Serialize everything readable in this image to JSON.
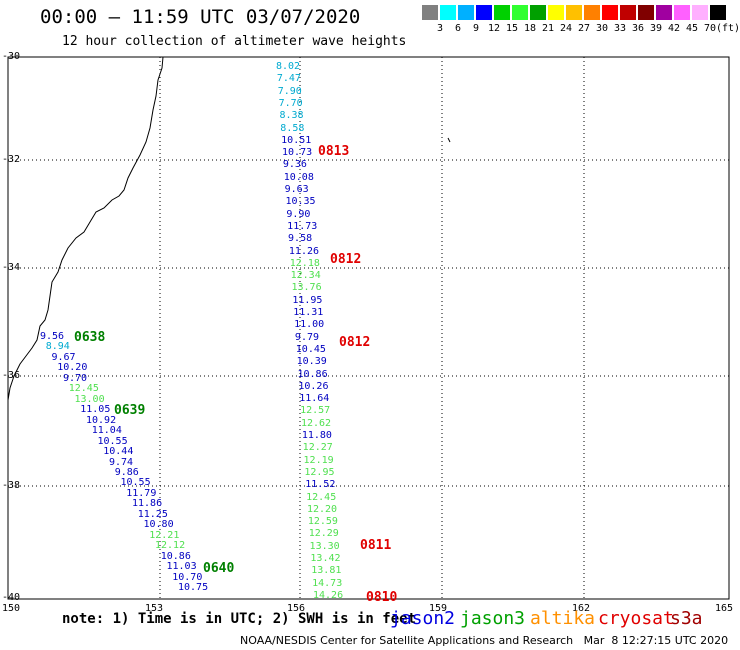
{
  "title": "00:00 – 11:59 UTC 03/07/2020",
  "subtitle": "12 hour collection of altimeter wave heights",
  "scale": {
    "colors": [
      "#808080",
      "#00ffff",
      "#00b0ff",
      "#0000ff",
      "#00d000",
      "#30ff30",
      "#00a000",
      "#ffff00",
      "#ffc000",
      "#ff8000",
      "#ff0000",
      "#c00000",
      "#800000",
      "#a000a0",
      "#ff60ff",
      "#ffb0ff",
      "#000000"
    ],
    "labels": [
      "3",
      "6",
      "9",
      "12",
      "15",
      "18",
      "21",
      "24",
      "27",
      "30",
      "33",
      "36",
      "39",
      "42",
      "45",
      "70",
      "(ft)"
    ]
  },
  "lat_labels": [
    "-30",
    "-32",
    "-34",
    "-36",
    "-38",
    "-40"
  ],
  "lon_labels": [
    "150",
    "153",
    "156",
    "159",
    "162",
    "165"
  ],
  "tracks": [
    {
      "heights": [
        "8.02",
        "7.47",
        "7.90",
        "7.70",
        "8.38",
        "8.58",
        "10.51",
        "10.73",
        "9.36",
        "10.08",
        "9.63",
        "10.35",
        "9.90",
        "11.73",
        "9.58",
        "11.26",
        "12.18",
        "12.34",
        "13.76",
        "11.95",
        "11.31",
        "11.00",
        "9.79",
        "10.45",
        "10.39",
        "10.86",
        "10.26",
        "11.64",
        "12.57",
        "12.62",
        "11.80",
        "12.27",
        "12.19",
        "12.95",
        "11.52",
        "12.45",
        "12.20",
        "12.59",
        "12.29",
        "13.30",
        "13.42",
        "13.81",
        "14.73",
        "14.26"
      ],
      "colors": [
        "#00aad0",
        "#00aad0",
        "#00aad0",
        "#00aad0",
        "#00aad0",
        "#00aad0",
        "#0000c0",
        "#0000c0",
        "#0000c0",
        "#0000c0",
        "#0000c0",
        "#0000c0",
        "#0000c0",
        "#0000c0",
        "#0000c0",
        "#0000c0",
        "#50e050",
        "#50e050",
        "#50e050",
        "#0000c0",
        "#0000c0",
        "#0000c0",
        "#0000c0",
        "#0000c0",
        "#0000c0",
        "#0000c0",
        "#0000c0",
        "#0000c0",
        "#50e050",
        "#50e050",
        "#0000c0",
        "#50e050",
        "#50e050",
        "#50e050",
        "#0000c0",
        "#50e050",
        "#50e050",
        "#50e050",
        "#50e050",
        "#50e050",
        "#50e050",
        "#50e050",
        "#50e050",
        "#50e050"
      ]
    },
    {
      "heights": [
        "9.56",
        "8.94",
        "9.67",
        "10.20",
        "9.70",
        "12.45",
        "13.00",
        "11.05",
        "10.92",
        "11.04",
        "10.55",
        "10.44",
        "9.74",
        "9.86",
        "10.55",
        "11.79",
        "11.86",
        "11.25",
        "10.80",
        "12.21",
        "12.12",
        "10.86",
        "11.03",
        "10.70",
        "10.75"
      ],
      "colors": [
        "#0000c0",
        "#00aad0",
        "#0000c0",
        "#0000c0",
        "#0000c0",
        "#50e050",
        "#50e050",
        "#0000c0",
        "#0000c0",
        "#0000c0",
        "#0000c0",
        "#0000c0",
        "#0000c0",
        "#0000c0",
        "#0000c0",
        "#0000c0",
        "#0000c0",
        "#0000c0",
        "#0000c0",
        "#50e050",
        "#50e050",
        "#0000c0",
        "#0000c0",
        "#0000c0",
        "#0000c0"
      ]
    }
  ],
  "time_marks": [
    {
      "label": "0813",
      "color": "#e00000"
    },
    {
      "label": "0812",
      "color": "#e00000"
    },
    {
      "label": "0812",
      "color": "#e00000"
    },
    {
      "label": "0811",
      "color": "#e00000"
    },
    {
      "label": "0810",
      "color": "#e00000"
    },
    {
      "label": "0638",
      "color": "#008000"
    },
    {
      "label": "0639",
      "color": "#008000"
    },
    {
      "label": "0640",
      "color": "#008000"
    }
  ],
  "note": "note: 1) Time is in UTC; 2) SWH is in feet",
  "legend": [
    {
      "label": "jason2",
      "color": "#0000e0"
    },
    {
      "label": "jason3",
      "color": "#00a000"
    },
    {
      "label": "altika",
      "color": "#ff9000"
    },
    {
      "label": "cryosat",
      "color": "#e00000"
    },
    {
      "label": "s3a",
      "color": "#a00000"
    }
  ],
  "footer": "NOAA/NESDIS Center for Satellite Applications and Research   Mar  8 12:27:15 UTC 2020"
}
